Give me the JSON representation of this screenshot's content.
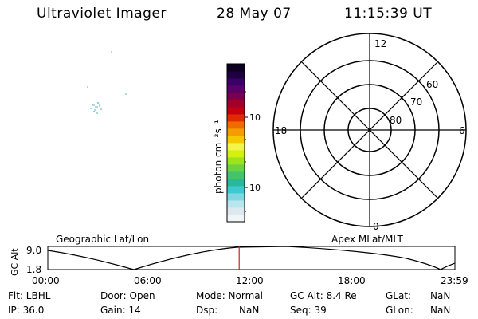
{
  "header": {
    "instrument": "Ultraviolet Imager",
    "date": "28 May 07",
    "time": "11:15:39 UT"
  },
  "colorbar": {
    "label": "photon cm⁻²s⁻¹",
    "ticks": [
      "100",
      "10"
    ],
    "colors": [
      "#eef6f8",
      "#dde9ee",
      "#b7e6ec",
      "#7fd8e0",
      "#3cc9cf",
      "#2bb79b",
      "#43c36c",
      "#6bd33f",
      "#9be31b",
      "#d5ef10",
      "#f3f548",
      "#f5c800",
      "#f59d00",
      "#ef6b00",
      "#e02a00",
      "#c40010",
      "#a0002a",
      "#78004e",
      "#5a0068",
      "#3b0068",
      "#1c0042",
      "#0b0020"
    ]
  },
  "polar": {
    "mlt_labels": {
      "top": "12",
      "bottom": "0",
      "left": "18",
      "right": "6"
    },
    "lat_labels": [
      "60",
      "70",
      "80"
    ]
  },
  "orbit": {
    "left_title": "Geographic Lat/Lon",
    "right_title": "Apex MLat/MLT",
    "ylabel": "GC Alt",
    "yticks": [
      "9.0",
      "1.8"
    ],
    "xticks": [
      "00:00",
      "06:00",
      "12:00",
      "18:00",
      "23:59"
    ],
    "current_time_fraction": 0.47
  },
  "info": {
    "flt": "Flt: LBHL",
    "ip": "IP: 36.0",
    "door": "Door: Open",
    "gain": "Gain: 14",
    "mode": "Mode: Normal",
    "dsp_label": "Dsp:",
    "dsp_value": "NaN",
    "gc_alt": "GC Alt: 8.4 Re",
    "seq": "Seq: 39",
    "glat_label": "GLat:",
    "glat_value": "NaN",
    "glon_label": "GLon:",
    "glon_value": "NaN"
  }
}
